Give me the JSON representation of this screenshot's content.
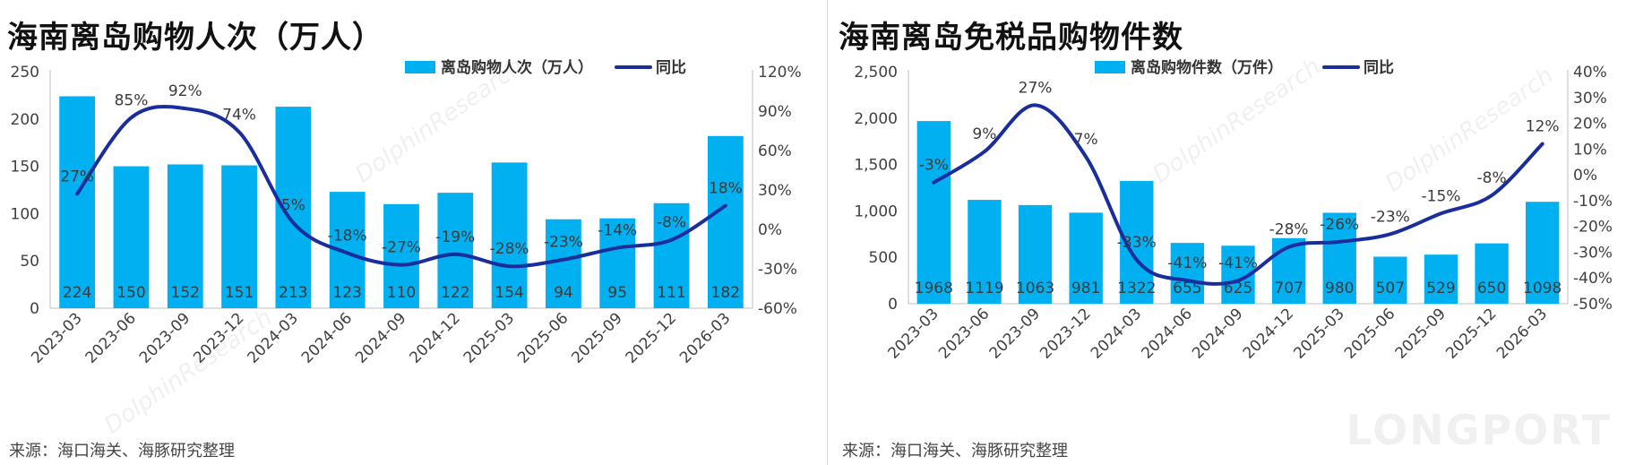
{
  "watermark": "DolphinResearch",
  "brand_watermark": "LONGPORT",
  "charts": [
    {
      "title": "海南离岛购物人次（万人）",
      "source": "来源：海口海关、海豚研究整理",
      "legend": {
        "bar": "离岛购物人次（万人）",
        "line": "同比"
      },
      "left_ticks": [
        "250",
        "200",
        "150",
        "100",
        "50",
        "0"
      ],
      "right_ticks": [
        "120%",
        "90%",
        "60%",
        "30%",
        "0%",
        "-30%",
        "-60%"
      ]
    },
    {
      "title": "海南离岛免税品购物件数",
      "source": "来源：海口海关、海豚研究整理",
      "legend": {
        "bar": "离岛购物件数（万件）",
        "line": "同比"
      },
      "left_ticks": [
        "2,500",
        "2,000",
        "1,500",
        "1,000",
        "500",
        "0"
      ],
      "right_ticks": [
        "40%",
        "30%",
        "20%",
        "10%",
        "0%",
        "-10%",
        "-20%",
        "-30%",
        "-40%",
        "-50%"
      ]
    }
  ],
  "chart_data": [
    {
      "type": "bar",
      "title": "海南离岛购物人次（万人）",
      "categories": [
        "2023-03",
        "2023-06",
        "2023-09",
        "2023-12",
        "2024-03",
        "2024-06",
        "2024-09",
        "2024-12",
        "2025-03",
        "2025-06",
        "2025-09",
        "2025-12",
        "2026-03"
      ],
      "series": [
        {
          "name": "离岛购物人次（万人）",
          "type": "bar",
          "axis": "left",
          "color": "#00b0f0",
          "values": [
            224,
            150,
            152,
            151,
            213,
            123,
            110,
            122,
            154,
            94,
            95,
            111,
            182
          ],
          "labels": [
            "224",
            "150",
            "152",
            "151",
            "213",
            "123",
            "110",
            "122",
            "154",
            "94",
            "95",
            "111",
            "182"
          ]
        },
        {
          "name": "同比",
          "type": "line",
          "axis": "right",
          "color": "#1a2d9c",
          "values": [
            27,
            85,
            92,
            74,
            5,
            -18,
            -27,
            -19,
            -28,
            -23,
            -14,
            -8,
            18
          ],
          "labels": [
            "27%",
            "85%",
            "92%",
            "74%",
            "5%",
            "-18%",
            "-27%",
            "-19%",
            "-28%",
            "-23%",
            "-14%",
            "-8%",
            "18%"
          ]
        }
      ],
      "ylim": [
        0,
        250
      ],
      "y2lim": [
        -60,
        120
      ],
      "legend_position": "top-right",
      "grid": false
    },
    {
      "type": "bar",
      "title": "海南离岛免税品购物件数",
      "categories": [
        "2023-03",
        "2023-06",
        "2023-09",
        "2023-12",
        "2024-03",
        "2024-06",
        "2024-09",
        "2024-12",
        "2025-03",
        "2025-06",
        "2025-09",
        "2025-12",
        "2026-03"
      ],
      "series": [
        {
          "name": "离岛购物件数（万件）",
          "type": "bar",
          "axis": "left",
          "color": "#00b0f0",
          "values": [
            1968,
            1119,
            1063,
            981,
            1322,
            655,
            625,
            707,
            980,
            507,
            529,
            650,
            1098
          ],
          "labels": [
            "1968",
            "1119",
            "1063",
            "981",
            "1322",
            "655",
            "625",
            "707",
            "980",
            "507",
            "529",
            "650",
            "1098"
          ]
        },
        {
          "name": "同比",
          "type": "line",
          "axis": "right",
          "color": "#1a2d9c",
          "values": [
            -3,
            9,
            27,
            7,
            -33,
            -41,
            -41,
            -28,
            -26,
            -23,
            -15,
            -8,
            12
          ],
          "labels": [
            "-3%",
            "9%",
            "27%",
            "7%",
            "-33%",
            "-41%",
            "-41%",
            "-28%",
            "-26%",
            "-23%",
            "-15%",
            "-8%",
            "12%"
          ]
        }
      ],
      "ylim": [
        0,
        2500
      ],
      "y2lim": [
        -50,
        40
      ],
      "legend_position": "top-right",
      "grid": false
    }
  ]
}
